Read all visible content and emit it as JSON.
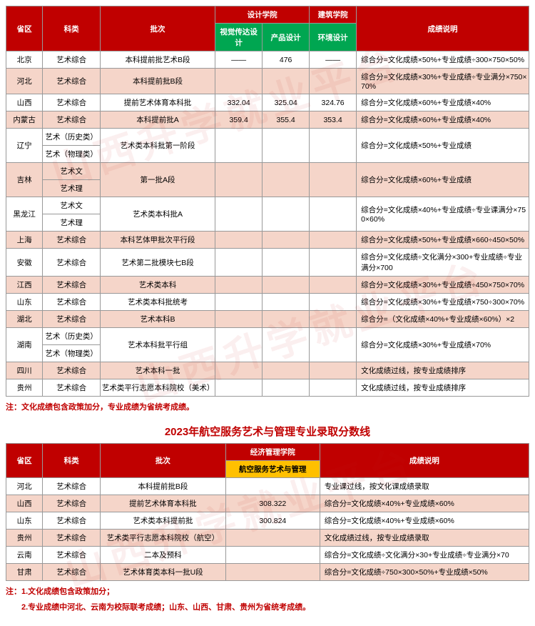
{
  "watermark": "山西升学就业平台",
  "table1": {
    "headers": {
      "province": "省区",
      "category": "科类",
      "batch": "批次",
      "design_school": "设计学院",
      "arch_school": "建筑学院",
      "visual": "视觉传达设计",
      "product": "产品设计",
      "env": "环境设计",
      "rule": "成绩说明"
    },
    "rows": [
      {
        "p": "北京",
        "c": "艺术综合",
        "b": "本科提前批艺术B段",
        "v": "——",
        "pr": "476",
        "e": "——",
        "r": "综合分=文化成绩×50%+专业成绩÷300×750×50%",
        "alt": false
      },
      {
        "p": "河北",
        "c": "艺术综合",
        "b": "本科提前批B段",
        "v": "",
        "pr": "",
        "e": "",
        "r": "综合分=文化成绩×30%+专业成绩÷专业满分×750×70%",
        "alt": true
      },
      {
        "p": "山西",
        "c": "艺术综合",
        "b": "提前艺术体育本科批",
        "v": "332.04",
        "pr": "325.04",
        "e": "324.76",
        "r": "综合分=文化成绩×60%+专业成绩×40%",
        "alt": false
      },
      {
        "p": "内蒙古",
        "c": "艺术综合",
        "b": "本科提前批A",
        "v": "359.4",
        "pr": "355.4",
        "e": "353.4",
        "r": "综合分=文化成绩×60%+专业成绩×40%",
        "alt": true
      },
      {
        "p": "辽宁",
        "c": [
          "艺术（历史类）",
          "艺术（物理类）"
        ],
        "b": "艺术类本科批第一阶段",
        "v": "",
        "pr": "",
        "e": "",
        "r": "综合分=文化成绩×50%+专业成绩",
        "alt": false,
        "span": 2
      },
      {
        "p": "吉林",
        "c": [
          "艺术文",
          "艺术理"
        ],
        "b": "第一批A段",
        "v": "",
        "pr": "",
        "e": "",
        "r": "综合分=文化成绩×60%+专业成绩",
        "alt": true,
        "span": 2
      },
      {
        "p": "黑龙江",
        "c": [
          "艺术文",
          "艺术理"
        ],
        "b": "艺术类本科批A",
        "v": "",
        "pr": "",
        "e": "",
        "r": "综合分=文化成绩×40%+专业成绩÷专业课满分×750×60%",
        "alt": false,
        "span": 2
      },
      {
        "p": "上海",
        "c": "艺术综合",
        "b": "本科艺体甲批次平行段",
        "v": "",
        "pr": "",
        "e": "",
        "r": "综合分=文化成绩×50%+专业成绩×660÷450×50%",
        "alt": true
      },
      {
        "p": "安徽",
        "c": "艺术综合",
        "b": "艺术第二批模块七B段",
        "v": "",
        "pr": "",
        "e": "",
        "r": "综合分=文化成绩÷文化满分×300+专业成绩÷专业满分×700",
        "alt": false
      },
      {
        "p": "江西",
        "c": "艺术综合",
        "b": "艺术类本科",
        "v": "",
        "pr": "",
        "e": "",
        "r": "综合分=文化成绩×30%+专业成绩÷450×750×70%",
        "alt": true
      },
      {
        "p": "山东",
        "c": "艺术综合",
        "b": "艺术类本科批统考",
        "v": "",
        "pr": "",
        "e": "",
        "r": "综合分=文化成绩×30%+专业成绩×750÷300×70%",
        "alt": false
      },
      {
        "p": "湖北",
        "c": "艺术综合",
        "b": "艺术本科B",
        "v": "",
        "pr": "",
        "e": "",
        "r": "综合分=（文化成绩×40%+专业成绩×60%）×2",
        "alt": true
      },
      {
        "p": "湖南",
        "c": [
          "艺术（历史类）",
          "艺术（物理类）"
        ],
        "b": "艺术本科批平行组",
        "v": "",
        "pr": "",
        "e": "",
        "r": "综合分=文化成绩×30%+专业成绩×70%",
        "alt": false,
        "span": 2
      },
      {
        "p": "四川",
        "c": "艺术综合",
        "b": "艺术本科一批",
        "v": "",
        "pr": "",
        "e": "",
        "r": "文化成绩过线，按专业成绩排序",
        "alt": true
      },
      {
        "p": "贵州",
        "c": "艺术综合",
        "b": "艺术类平行志愿本科院校（美术）",
        "v": "",
        "pr": "",
        "e": "",
        "r": "文化成绩过线，按专业成绩排序",
        "alt": false
      }
    ],
    "note": "注：文化成绩包含政策加分，专业成绩为省统考成绩。"
  },
  "title2": "2023年航空服务艺术与管理专业录取分数线",
  "table2": {
    "headers": {
      "province": "省区",
      "category": "科类",
      "batch": "批次",
      "school": "经济管理学院",
      "major": "航空服务艺术与管理",
      "rule": "成绩说明"
    },
    "rows": [
      {
        "p": "河北",
        "c": "艺术综合",
        "b": "本科提前批B段",
        "s": "",
        "r": "专业课过线，按文化课成绩录取",
        "alt": false
      },
      {
        "p": "山西",
        "c": "艺术综合",
        "b": "提前艺术体育本科批",
        "s": "308.322",
        "r": "综合分=文化成绩×40%+专业成绩×60%",
        "alt": true
      },
      {
        "p": "山东",
        "c": "艺术综合",
        "b": "艺术类本科提前批",
        "s": "300.824",
        "r": "综合分=文化成绩×40%+专业成绩×60%",
        "alt": false
      },
      {
        "p": "贵州",
        "c": "艺术综合",
        "b": "艺术类平行志愿本科院校（航空）",
        "s": "",
        "r": "文化成绩过线，按专业成绩录取",
        "alt": true
      },
      {
        "p": "云南",
        "c": "艺术综合",
        "b": "二本及预科",
        "s": "",
        "r": "综合分=文化成绩÷文化满分×30+专业成绩÷专业满分×70",
        "alt": false
      },
      {
        "p": "甘肃",
        "c": "艺术综合",
        "b": "艺术体育类本科一批U段",
        "s": "",
        "r": "综合分=文化成绩÷750×300×50%+专业成绩×50%",
        "alt": true
      }
    ],
    "notes": [
      "注：1.文化成绩包含政策加分；",
      "2.专业成绩中河北、云南为校际联考成绩；山东、山西、甘肃、贵州为省统考成绩。"
    ]
  },
  "col_widths": {
    "t1": [
      "7%",
      "11%",
      "22%",
      "9%",
      "9%",
      "9%",
      "33%"
    ],
    "t2": [
      "7%",
      "11%",
      "24%",
      "18%",
      "40%"
    ]
  }
}
